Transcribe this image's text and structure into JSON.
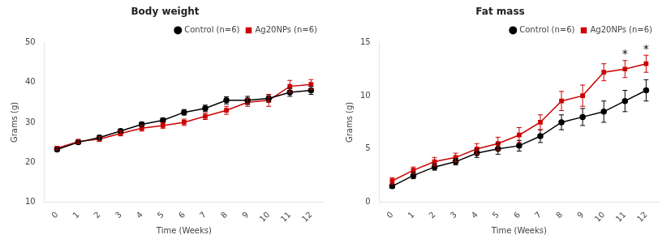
{
  "chart_data": [
    {
      "type": "line",
      "title": "Body weight",
      "x_label": "Time (Weeks)",
      "y_label": "Grams (g)",
      "x": [
        0,
        1,
        2,
        3,
        4,
        5,
        6,
        7,
        8,
        9,
        10,
        11,
        12
      ],
      "series": [
        {
          "name": "Control (n=6)",
          "color": "#000000",
          "marker": "circle",
          "values": [
            23.2,
            25.0,
            26.2,
            27.8,
            29.5,
            30.5,
            32.5,
            33.5,
            35.5,
            35.5,
            36.0,
            37.5,
            38.0
          ],
          "errors": [
            0.4,
            0.4,
            0.5,
            0.5,
            0.6,
            0.6,
            0.7,
            0.8,
            0.9,
            1.0,
            0.9,
            1.0,
            1.0
          ]
        },
        {
          "name": "Ag20NPs (n=6)",
          "color": "#cc0000",
          "marker": "square",
          "values": [
            23.5,
            25.2,
            25.8,
            27.2,
            28.5,
            29.2,
            30.0,
            31.5,
            33.0,
            35.0,
            35.5,
            39.0,
            39.5
          ],
          "errors": [
            0.4,
            0.5,
            0.6,
            0.6,
            0.7,
            0.7,
            0.8,
            0.8,
            1.0,
            1.0,
            1.5,
            1.5,
            1.2
          ]
        }
      ],
      "xlim": [
        -0.6,
        12.6
      ],
      "xticks": [
        0,
        1,
        2,
        3,
        4,
        5,
        6,
        7,
        8,
        9,
        10,
        11,
        12
      ],
      "ylim": [
        10,
        50
      ],
      "yticks": [
        10,
        20,
        30,
        40,
        50
      ],
      "grid": false,
      "legend": "upper right"
    },
    {
      "type": "line",
      "title": "Fat mass",
      "x_label": "Time (Weeks)",
      "y_label": "Grams (g)",
      "x": [
        0,
        1,
        2,
        3,
        4,
        5,
        6,
        7,
        8,
        9,
        10,
        11,
        12
      ],
      "series": [
        {
          "name": "Control (n=6)",
          "color": "#000000",
          "marker": "circle",
          "values": [
            1.5,
            2.5,
            3.3,
            3.8,
            4.6,
            5.0,
            5.3,
            6.2,
            7.5,
            8.0,
            8.5,
            9.5,
            10.5
          ],
          "errors": [
            0.2,
            0.3,
            0.3,
            0.3,
            0.4,
            0.5,
            0.5,
            0.6,
            0.7,
            0.8,
            1.0,
            1.0,
            1.0
          ]
        },
        {
          "name": "Ag20NPs (n=6)",
          "color": "#cc0000",
          "marker": "square",
          "values": [
            2.0,
            3.0,
            3.8,
            4.2,
            5.0,
            5.5,
            6.3,
            7.5,
            9.5,
            10.0,
            12.2,
            12.5,
            13.0
          ],
          "errors": [
            0.3,
            0.3,
            0.4,
            0.4,
            0.5,
            0.6,
            0.7,
            0.7,
            0.9,
            1.0,
            0.8,
            0.8,
            0.8
          ]
        }
      ],
      "xlim": [
        -0.6,
        12.6
      ],
      "xticks": [
        0,
        1,
        2,
        3,
        4,
        5,
        6,
        7,
        8,
        9,
        10,
        11,
        12
      ],
      "ylim": [
        0,
        15
      ],
      "yticks": [
        0,
        5,
        10,
        15
      ],
      "annotations": [
        {
          "text": "*",
          "x": 11,
          "y": 13.6
        },
        {
          "text": "*",
          "x": 12,
          "y": 14.1
        }
      ],
      "grid": false,
      "legend": "upper right"
    }
  ]
}
